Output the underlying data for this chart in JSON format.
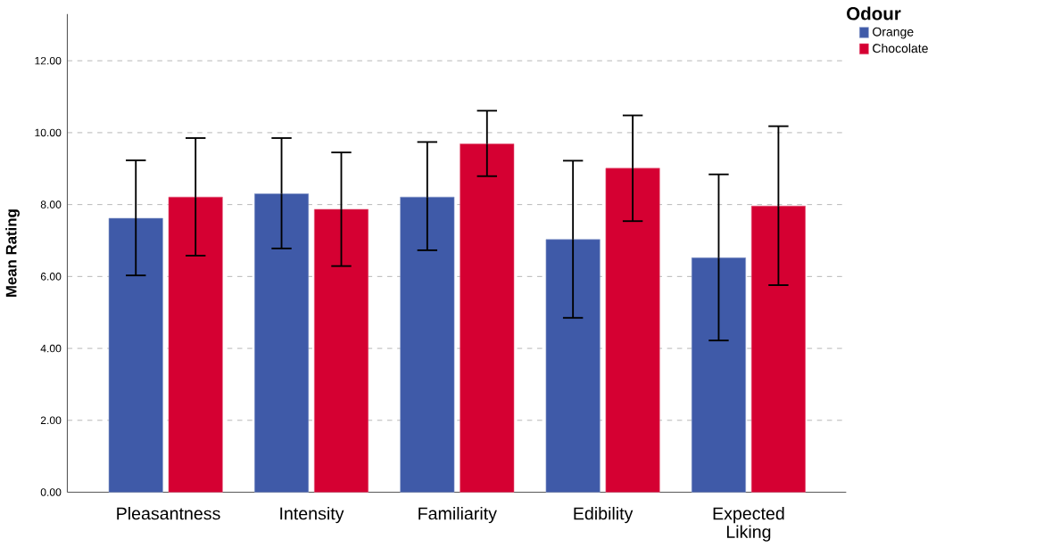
{
  "chart_data": {
    "type": "bar",
    "ylabel": "Mean Rating",
    "legend_title": "Odour",
    "categories": [
      "Pleasantness",
      "Intensity",
      "Familiarity",
      "Edibility",
      "Expected Liking"
    ],
    "series": [
      {
        "name": "Orange",
        "color": "#3f5aa8",
        "values": [
          7.62,
          8.3,
          8.21,
          7.03,
          6.52
        ],
        "errors": [
          [
            6.03,
            9.23
          ],
          [
            6.78,
            9.85
          ],
          [
            6.73,
            9.74
          ],
          [
            4.85,
            9.22
          ],
          [
            4.22,
            8.84
          ]
        ]
      },
      {
        "name": "Chocolate",
        "color": "#d50032",
        "values": [
          8.21,
          7.87,
          9.69,
          9.01,
          7.96
        ],
        "errors": [
          [
            6.58,
            9.85
          ],
          [
            6.29,
            9.45
          ],
          [
            8.79,
            10.61
          ],
          [
            7.54,
            10.48
          ],
          [
            5.76,
            10.18
          ]
        ]
      }
    ],
    "ylim": [
      0,
      13.3
    ],
    "yticks": [
      {
        "value": 0,
        "label": "0.00"
      },
      {
        "value": 2,
        "label": "2.00"
      },
      {
        "value": 4,
        "label": "4.00"
      },
      {
        "value": 6,
        "label": "6.00"
      },
      {
        "value": 8,
        "label": "8.00"
      },
      {
        "value": 10,
        "label": "10.00"
      },
      {
        "value": 12,
        "label": "12.00"
      }
    ],
    "grid": "y",
    "legend": "top right"
  }
}
